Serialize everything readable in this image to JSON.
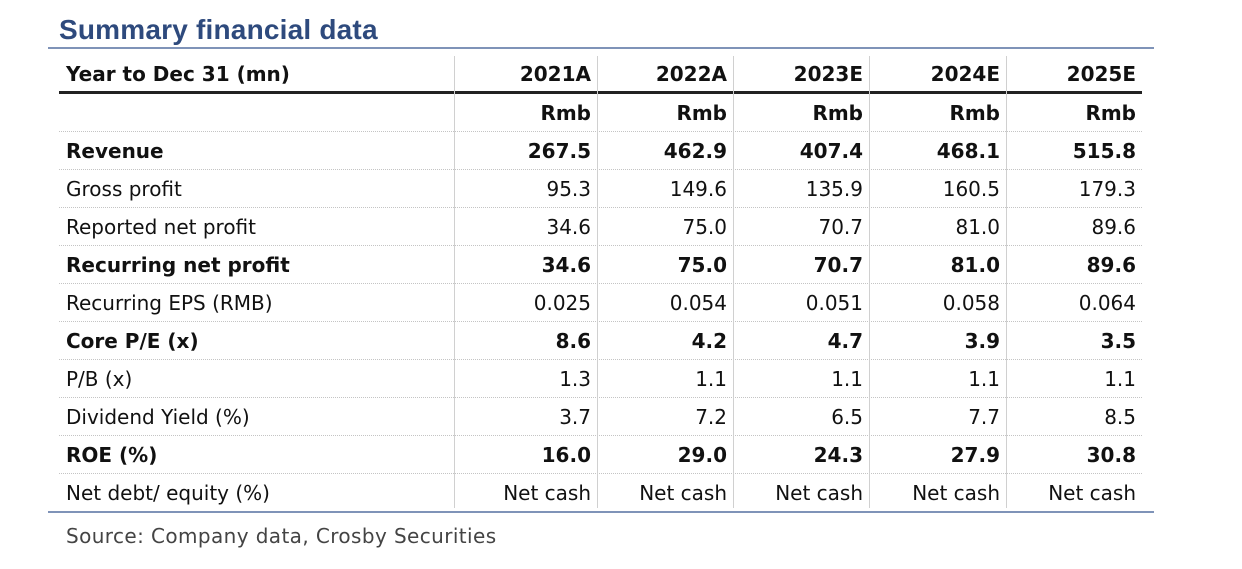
{
  "title": "Summary financial data",
  "header": {
    "label": "Year to Dec 31 (mn)",
    "years": [
      "2021A",
      "2022A",
      "2023E",
      "2024E",
      "2025E"
    ],
    "units": [
      "Rmb",
      "Rmb",
      "Rmb",
      "Rmb",
      "Rmb"
    ]
  },
  "rows": [
    {
      "label": "Revenue",
      "bold": true,
      "values": [
        "267.5",
        "462.9",
        "407.4",
        "468.1",
        "515.8"
      ]
    },
    {
      "label": "Gross profit",
      "bold": false,
      "values": [
        "95.3",
        "149.6",
        "135.9",
        "160.5",
        "179.3"
      ]
    },
    {
      "label": "Reported net profit",
      "bold": false,
      "values": [
        "34.6",
        "75.0",
        "70.7",
        "81.0",
        "89.6"
      ]
    },
    {
      "label": "Recurring net profit",
      "bold": true,
      "values": [
        "34.6",
        "75.0",
        "70.7",
        "81.0",
        "89.6"
      ]
    },
    {
      "label": "Recurring EPS (RMB)",
      "bold": false,
      "values": [
        "0.025",
        "0.054",
        "0.051",
        "0.058",
        "0.064"
      ]
    },
    {
      "label": "Core P/E (x)",
      "bold": true,
      "values": [
        "8.6",
        "4.2",
        "4.7",
        "3.9",
        "3.5"
      ]
    },
    {
      "label": "P/B (x)",
      "bold": false,
      "values": [
        "1.3",
        "1.1",
        "1.1",
        "1.1",
        "1.1"
      ]
    },
    {
      "label": "Dividend Yield (%)",
      "bold": false,
      "values": [
        "3.7",
        "7.2",
        "6.5",
        "7.7",
        "8.5"
      ]
    },
    {
      "label": "ROE (%)",
      "bold": true,
      "values": [
        "16.0",
        "29.0",
        "24.3",
        "27.9",
        "30.8"
      ]
    },
    {
      "label": "Net debt/ equity (%)",
      "bold": false,
      "values": [
        "Net cash",
        "Net cash",
        "Net cash",
        "Net cash",
        "Net cash"
      ]
    }
  ],
  "source": "Source: Company data, Crosby Securities"
}
